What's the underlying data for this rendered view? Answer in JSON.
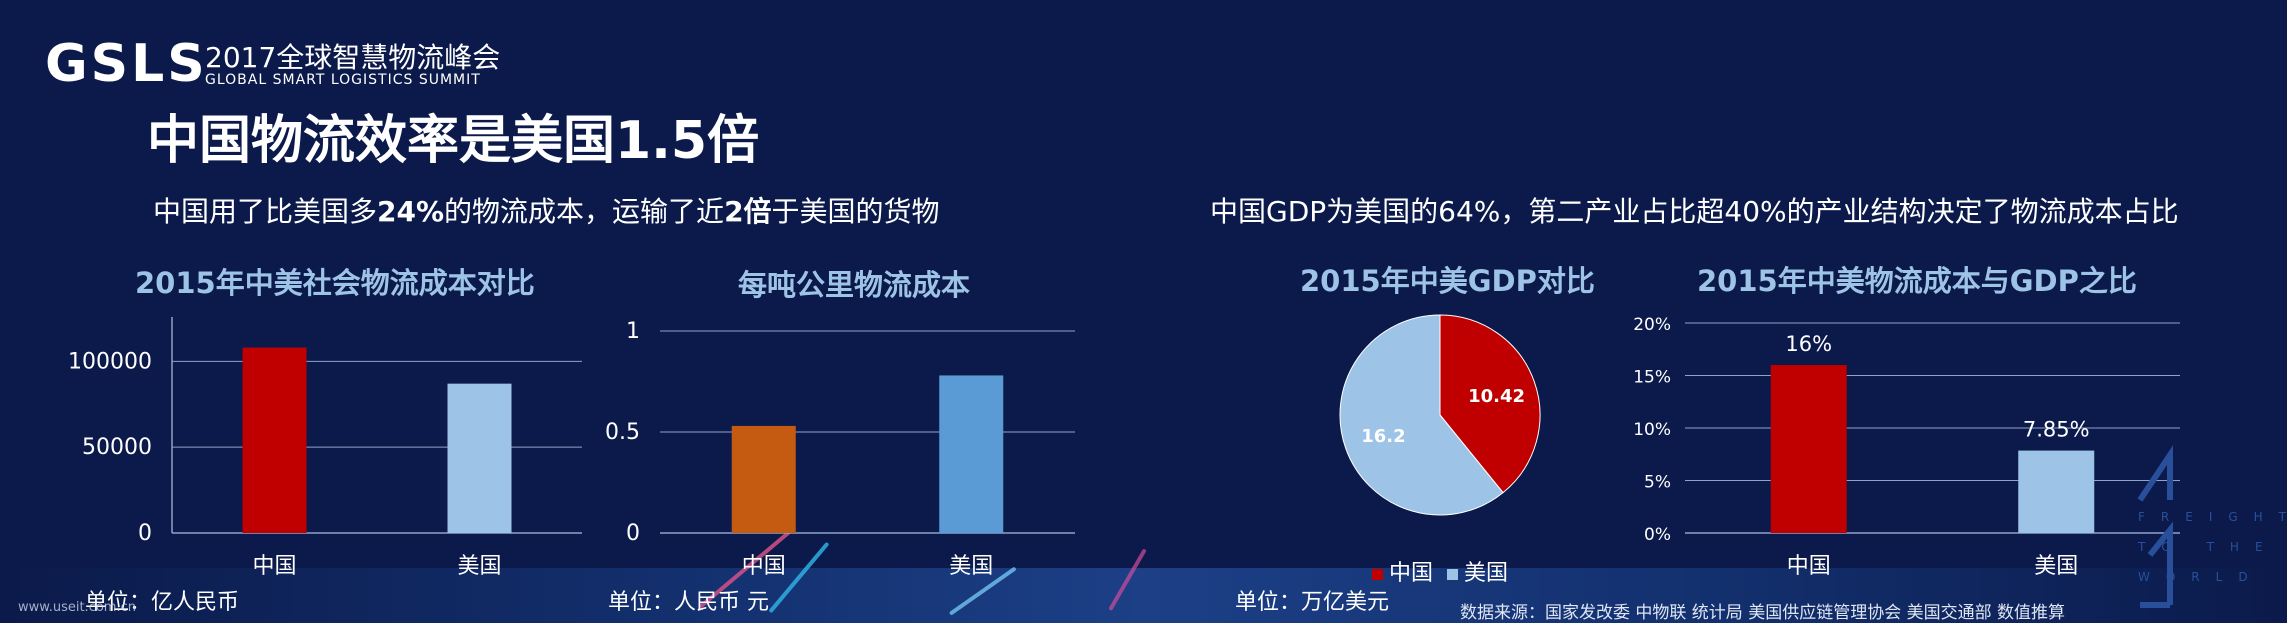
{
  "header": {
    "logo_mark": "GSLS",
    "logo_title": "2017全球智慧物流峰会",
    "logo_subtitle": "GLOBAL SMART LOGISTICS SUMMIT",
    "page_title": "中国物流效率是美国1.5倍"
  },
  "subheads": {
    "left": {
      "pre": "中国用了比美国多",
      "b1": "24%",
      "mid": "的物流成本，运输了近",
      "b2": "2倍",
      "post": "于美国的货物"
    },
    "right": "中国GDP为美国的64%，第二产业占比超40%的产业结构决定了物流成本占比"
  },
  "units": {
    "chart1": "单位：亿人民币",
    "chart2": "单位：人民币 元",
    "chart3": "单位：万亿美元"
  },
  "footer": {
    "source": "数据来源：国家发改委  中物联 统计局  美国供应链管理协会 美国交通部  数值推算",
    "watermark": "www.useit.com.cn"
  },
  "corner_logo": {
    "lines": [
      "FREIGHT",
      "TO THE",
      "WORLD"
    ]
  },
  "colors": {
    "red": "#c00000",
    "light_blue": "#9dc3e6",
    "orange": "#c55a11",
    "mid_blue": "#5b9bd5",
    "background": "#0b1a4a"
  },
  "chart_data": [
    {
      "type": "bar",
      "title": "2015年中美社会物流成本对比",
      "categories": [
        "中国",
        "美国"
      ],
      "values": [
        108000,
        87000
      ],
      "ylim": [
        0,
        120000
      ],
      "yticks": [
        0,
        50000,
        100000
      ],
      "ytick_labels": [
        "0",
        "50000",
        "100000"
      ],
      "grid": true,
      "colors": [
        "#c00000",
        "#9dc3e6"
      ]
    },
    {
      "type": "bar",
      "title": "每吨公里物流成本",
      "categories": [
        "中国",
        "美国"
      ],
      "values": [
        0.53,
        0.78
      ],
      "ylim": [
        0,
        1
      ],
      "yticks": [
        0,
        0.5,
        1
      ],
      "ytick_labels": [
        "0",
        "0.5",
        "1"
      ],
      "grid": true,
      "colors": [
        "#c55a11",
        "#5b9bd5"
      ]
    },
    {
      "type": "pie",
      "title": "2015年中美GDP对比",
      "categories": [
        "中国",
        "美国"
      ],
      "values": [
        10.42,
        16.2
      ],
      "labels": [
        "10.42",
        "16.2"
      ],
      "legend": "bottom",
      "colors": [
        "#c00000",
        "#9dc3e6"
      ]
    },
    {
      "type": "bar",
      "title": "2015年中美物流成本与GDP之比",
      "categories": [
        "中国",
        "美国"
      ],
      "values": [
        0.16,
        0.0785
      ],
      "data_labels": [
        "16%",
        "7.85%"
      ],
      "ylim": [
        0,
        0.2
      ],
      "yticks": [
        0,
        0.05,
        0.1,
        0.15,
        0.2
      ],
      "ytick_labels": [
        "0%",
        "5%",
        "10%",
        "15%",
        "20%"
      ],
      "grid": true,
      "colors": [
        "#c00000",
        "#9dc3e6"
      ]
    }
  ]
}
